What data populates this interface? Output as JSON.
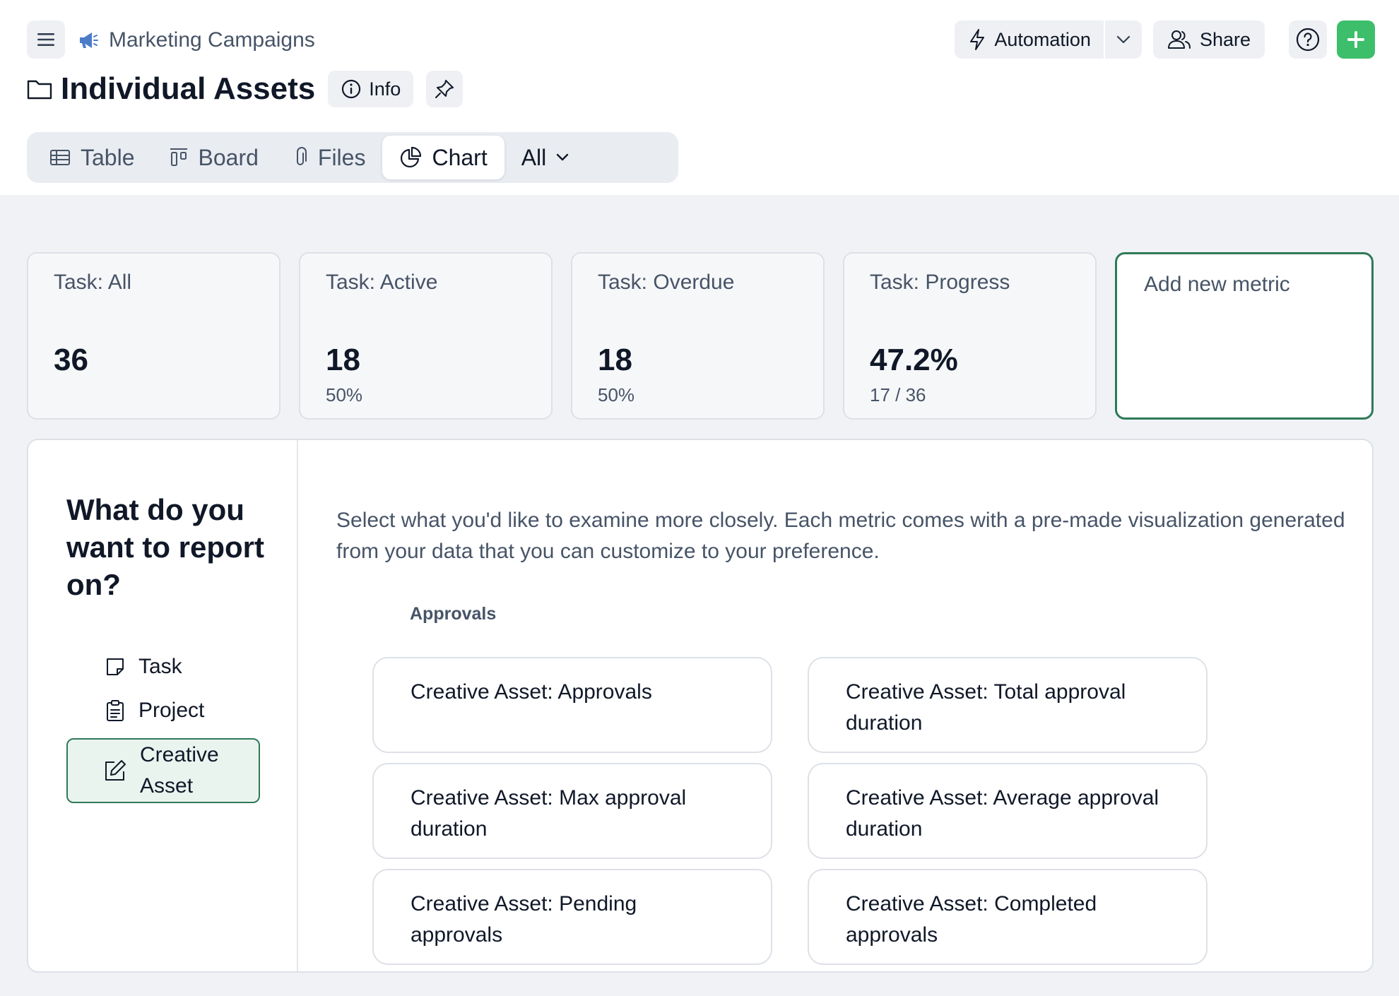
{
  "header": {
    "breadcrumb": "Marketing Campaigns",
    "title": "Individual Assets",
    "info_label": "Info",
    "automation_label": "Automation",
    "share_label": "Share"
  },
  "view_tabs": {
    "table": "Table",
    "board": "Board",
    "files": "Files",
    "chart": "Chart",
    "filter": "All"
  },
  "metrics": [
    {
      "label": "Task: All",
      "value": "36",
      "sub": ""
    },
    {
      "label": "Task: Active",
      "value": "18",
      "sub": "50%"
    },
    {
      "label": "Task: Overdue",
      "value": "18",
      "sub": "50%"
    },
    {
      "label": "Task: Progress",
      "value": "47.2%",
      "sub": "17 / 36"
    }
  ],
  "add_metric_label": "Add new metric",
  "report": {
    "heading": "What do you want to report on?",
    "entities": [
      "Task",
      "Project",
      "Creative Asset"
    ],
    "description": "Select what you'd like to examine more closely. Each metric comes with a pre-made visualization generated from your data that you can customize to your preference.",
    "group_label": "Approvals",
    "options": [
      "Creative Asset: Approvals",
      "Creative Asset: Total approval duration",
      "Creative Asset: Max approval duration",
      "Creative Asset: Average approval duration",
      "Creative Asset: Pending approvals",
      "Creative Asset: Completed approvals"
    ]
  },
  "colors": {
    "accent_green": "#3dbe6b",
    "selected_border": "#2f7a57",
    "breadcrumb_icon": "#4a7cc9"
  }
}
